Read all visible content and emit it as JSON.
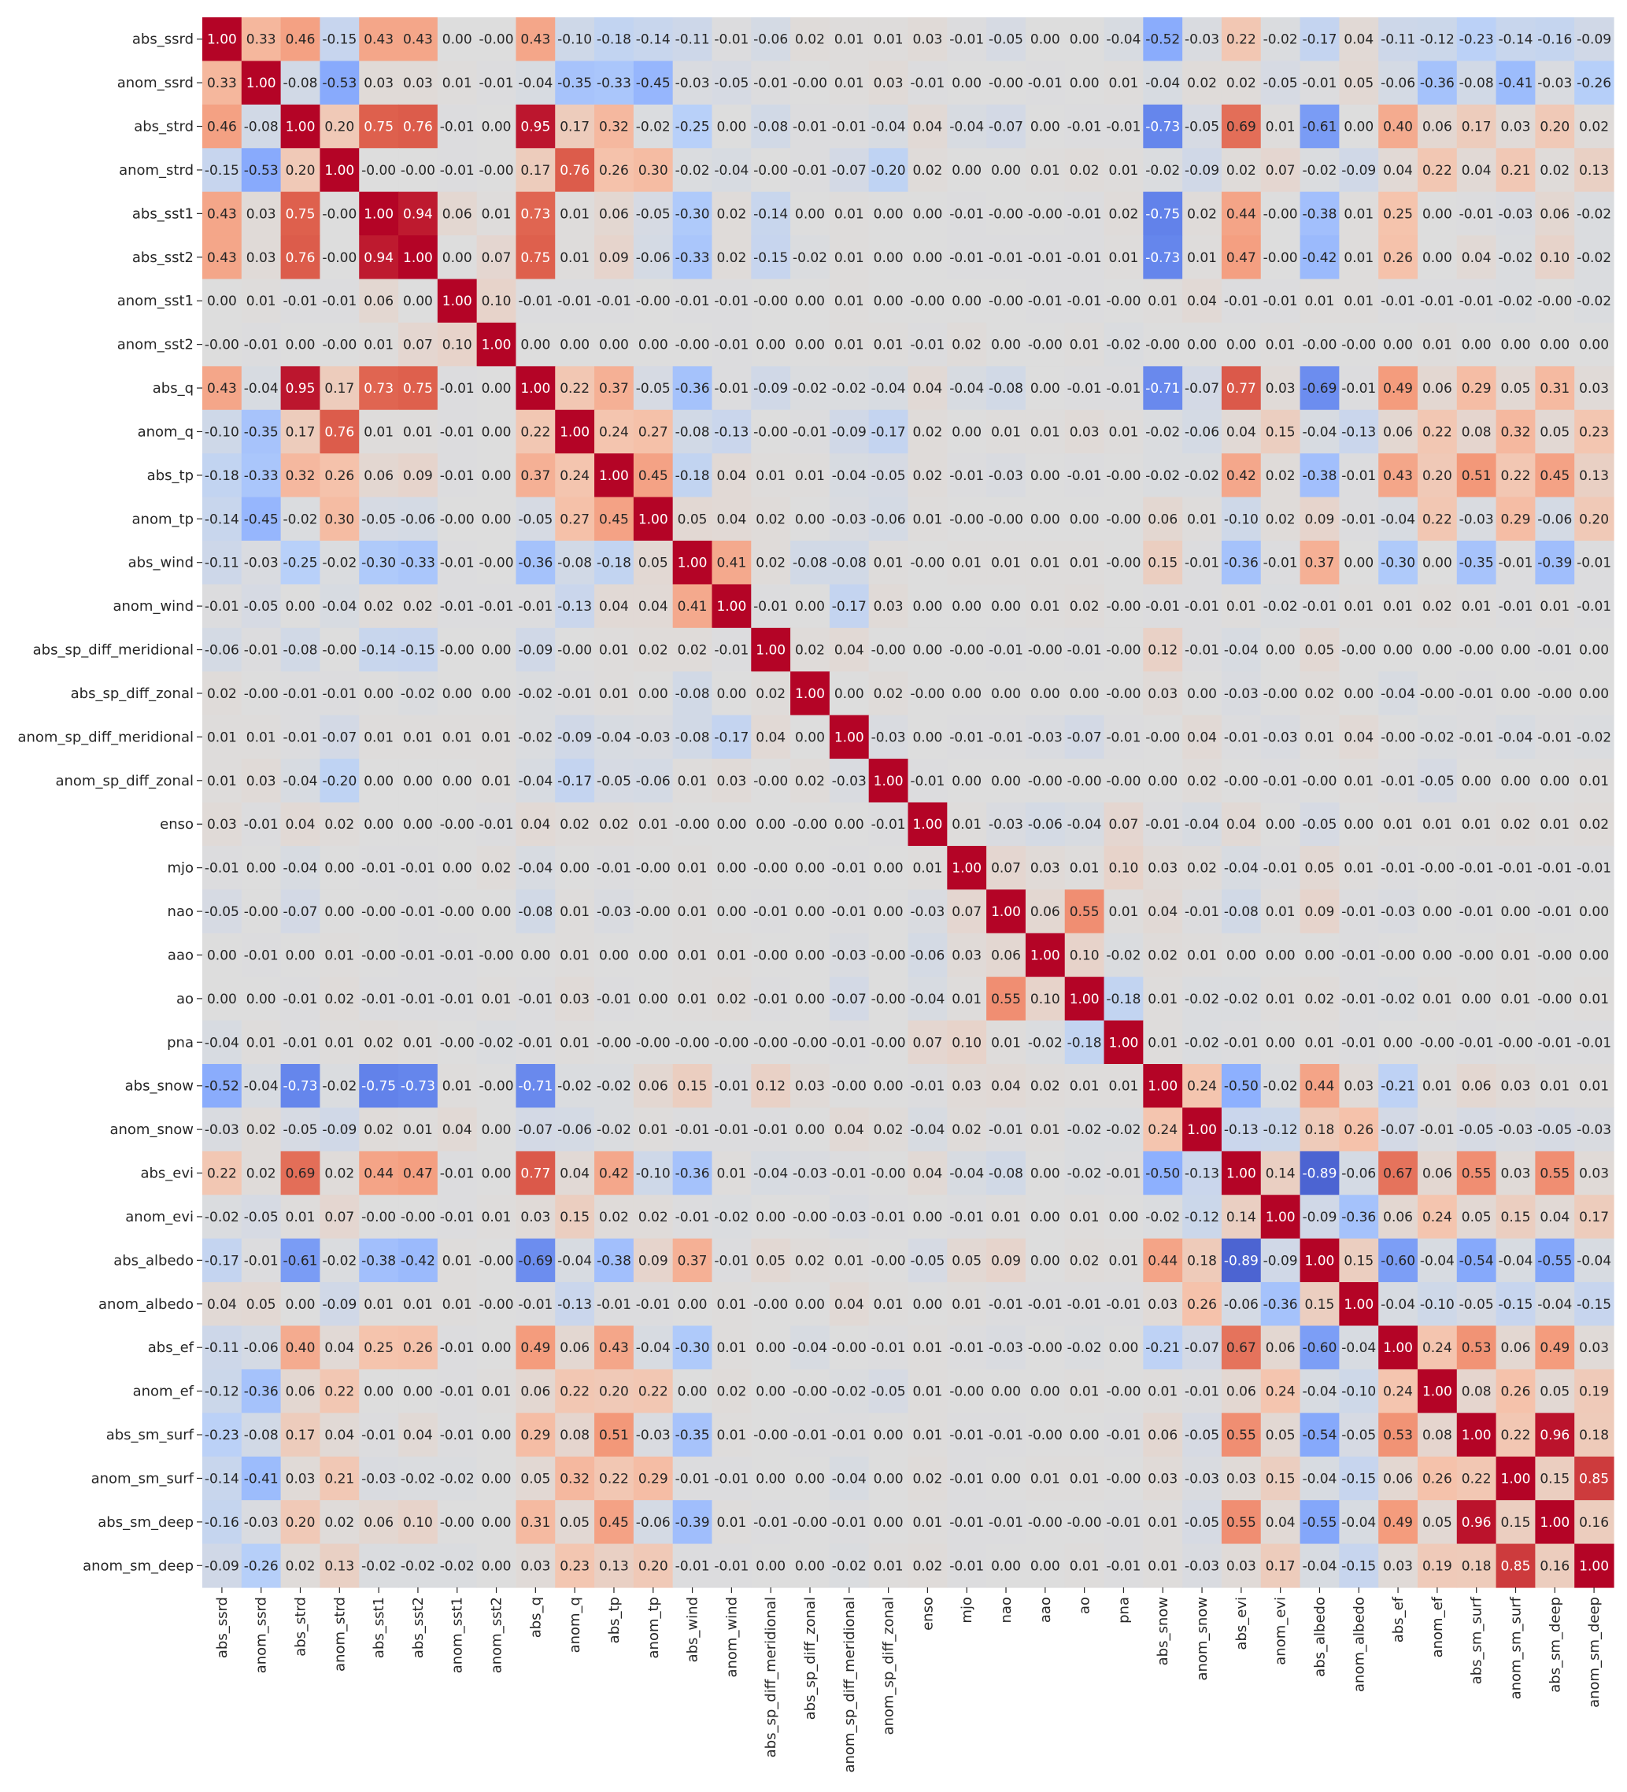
{
  "chart_data": {
    "type": "heatmap",
    "title": "",
    "xlabel": "",
    "ylabel": "",
    "colormap": "coolwarm",
    "vmin": -1,
    "vmax": 1,
    "colorbar": false,
    "annotation_format": "0.00",
    "labels": [
      "abs_ssrd",
      "anom_ssrd",
      "abs_strd",
      "anom_strd",
      "abs_sst1",
      "abs_sst2",
      "anom_sst1",
      "anom_sst2",
      "abs_q",
      "anom_q",
      "abs_tp",
      "anom_tp",
      "abs_wind",
      "anom_wind",
      "abs_sp_diff_meridional",
      "abs_sp_diff_zonal",
      "anom_sp_diff_meridional",
      "anom_sp_diff_zonal",
      "enso",
      "mjo",
      "nao",
      "aao",
      "ao",
      "pna",
      "abs_snow",
      "anom_snow",
      "abs_evi",
      "anom_evi",
      "abs_albedo",
      "anom_albedo",
      "abs_ef",
      "anom_ef",
      "abs_sm_surf",
      "anom_sm_surf",
      "abs_sm_deep",
      "anom_sm_deep"
    ],
    "matrix": [
      [
        1.0,
        0.33,
        0.46,
        -0.15,
        0.43,
        0.43,
        0.0,
        -0.0,
        0.43,
        -0.1,
        -0.18,
        -0.14,
        -0.11,
        -0.01,
        -0.06,
        0.02,
        0.01,
        0.01,
        0.03,
        -0.01,
        -0.05,
        0.0,
        0.0,
        -0.04,
        -0.52,
        -0.03,
        0.22,
        -0.02,
        -0.17,
        0.04,
        -0.11,
        -0.12,
        -0.23,
        -0.14,
        -0.16,
        -0.09
      ],
      [
        0.33,
        1.0,
        -0.08,
        -0.53,
        0.03,
        0.03,
        0.01,
        -0.01,
        -0.04,
        -0.35,
        -0.33,
        -0.45,
        -0.03,
        -0.05,
        -0.01,
        -0.0,
        0.01,
        0.03,
        -0.01,
        0.0,
        -0.0,
        -0.01,
        0.0,
        0.01,
        -0.04,
        0.02,
        0.02,
        -0.05,
        -0.01,
        0.05,
        -0.06,
        -0.36,
        -0.08,
        -0.41,
        -0.03,
        -0.26
      ],
      [
        0.46,
        -0.08,
        1.0,
        0.2,
        0.75,
        0.76,
        -0.01,
        0.0,
        0.95,
        0.17,
        0.32,
        -0.02,
        -0.25,
        0.0,
        -0.08,
        -0.01,
        -0.01,
        -0.04,
        0.04,
        -0.04,
        -0.07,
        0.0,
        -0.01,
        -0.01,
        -0.73,
        -0.05,
        0.69,
        0.01,
        -0.61,
        0.0,
        0.4,
        0.06,
        0.17,
        0.03,
        0.2,
        0.02
      ],
      [
        -0.15,
        -0.53,
        0.2,
        1.0,
        -0.0,
        -0.0,
        -0.01,
        -0.0,
        0.17,
        0.76,
        0.26,
        0.3,
        -0.02,
        -0.04,
        -0.0,
        -0.01,
        -0.07,
        -0.2,
        0.02,
        0.0,
        0.0,
        0.01,
        0.02,
        0.01,
        -0.02,
        -0.09,
        0.02,
        0.07,
        -0.02,
        -0.09,
        0.04,
        0.22,
        0.04,
        0.21,
        0.02,
        0.13
      ],
      [
        0.43,
        0.03,
        0.75,
        -0.0,
        1.0,
        0.94,
        0.06,
        0.01,
        0.73,
        0.01,
        0.06,
        -0.05,
        -0.3,
        0.02,
        -0.14,
        0.0,
        0.01,
        0.0,
        0.0,
        -0.01,
        -0.0,
        -0.0,
        -0.01,
        0.02,
        -0.75,
        0.02,
        0.44,
        -0.0,
        -0.38,
        0.01,
        0.25,
        0.0,
        -0.01,
        -0.03,
        0.06,
        -0.02
      ],
      [
        0.43,
        0.03,
        0.76,
        -0.0,
        0.94,
        1.0,
        0.0,
        0.07,
        0.75,
        0.01,
        0.09,
        -0.06,
        -0.33,
        0.02,
        -0.15,
        -0.02,
        0.01,
        0.0,
        0.0,
        -0.01,
        -0.01,
        -0.01,
        -0.01,
        0.01,
        -0.73,
        0.01,
        0.47,
        -0.0,
        -0.42,
        0.01,
        0.26,
        0.0,
        0.04,
        -0.02,
        0.1,
        -0.02
      ],
      [
        0.0,
        0.01,
        -0.01,
        -0.01,
        0.06,
        0.0,
        1.0,
        0.1,
        -0.01,
        -0.01,
        -0.01,
        -0.0,
        -0.01,
        -0.01,
        -0.0,
        0.0,
        0.01,
        0.0,
        -0.0,
        0.0,
        -0.0,
        -0.01,
        -0.01,
        -0.0,
        0.01,
        0.04,
        -0.01,
        -0.01,
        0.01,
        0.01,
        -0.01,
        -0.01,
        -0.01,
        -0.02,
        -0.0,
        -0.02
      ],
      [
        -0.0,
        -0.01,
        0.0,
        -0.0,
        0.01,
        0.07,
        0.1,
        1.0,
        0.0,
        0.0,
        0.0,
        0.0,
        -0.0,
        -0.01,
        0.0,
        0.0,
        0.01,
        0.01,
        -0.01,
        0.02,
        0.0,
        -0.0,
        0.01,
        -0.02,
        -0.0,
        0.0,
        0.0,
        0.01,
        -0.0,
        -0.0,
        0.0,
        0.01,
        0.0,
        0.0,
        0.0,
        0.0
      ],
      [
        0.43,
        -0.04,
        0.95,
        0.17,
        0.73,
        0.75,
        -0.01,
        0.0,
        1.0,
        0.22,
        0.37,
        -0.05,
        -0.36,
        -0.01,
        -0.09,
        -0.02,
        -0.02,
        -0.04,
        0.04,
        -0.04,
        -0.08,
        0.0,
        -0.01,
        -0.01,
        -0.71,
        -0.07,
        0.77,
        0.03,
        -0.69,
        -0.01,
        0.49,
        0.06,
        0.29,
        0.05,
        0.31,
        0.03
      ],
      [
        -0.1,
        -0.35,
        0.17,
        0.76,
        0.01,
        0.01,
        -0.01,
        0.0,
        0.22,
        1.0,
        0.24,
        0.27,
        -0.08,
        -0.13,
        -0.0,
        -0.01,
        -0.09,
        -0.17,
        0.02,
        0.0,
        0.01,
        0.01,
        0.03,
        0.01,
        -0.02,
        -0.06,
        0.04,
        0.15,
        -0.04,
        -0.13,
        0.06,
        0.22,
        0.08,
        0.32,
        0.05,
        0.23
      ],
      [
        -0.18,
        -0.33,
        0.32,
        0.26,
        0.06,
        0.09,
        -0.01,
        0.0,
        0.37,
        0.24,
        1.0,
        0.45,
        -0.18,
        0.04,
        0.01,
        0.01,
        -0.04,
        -0.05,
        0.02,
        -0.01,
        -0.03,
        0.0,
        -0.01,
        -0.0,
        -0.02,
        -0.02,
        0.42,
        0.02,
        -0.38,
        -0.01,
        0.43,
        0.2,
        0.51,
        0.22,
        0.45,
        0.13
      ],
      [
        -0.14,
        -0.45,
        -0.02,
        0.3,
        -0.05,
        -0.06,
        -0.0,
        0.0,
        -0.05,
        0.27,
        0.45,
        1.0,
        0.05,
        0.04,
        0.02,
        0.0,
        -0.03,
        -0.06,
        0.01,
        -0.0,
        -0.0,
        0.0,
        0.0,
        -0.0,
        0.06,
        0.01,
        -0.1,
        0.02,
        0.09,
        -0.01,
        -0.04,
        0.22,
        -0.03,
        0.29,
        -0.06,
        0.2
      ],
      [
        -0.11,
        -0.03,
        -0.25,
        -0.02,
        -0.3,
        -0.33,
        -0.01,
        -0.0,
        -0.36,
        -0.08,
        -0.18,
        0.05,
        1.0,
        0.41,
        0.02,
        -0.08,
        -0.08,
        0.01,
        -0.0,
        0.01,
        0.01,
        0.01,
        0.01,
        -0.0,
        0.15,
        -0.01,
        -0.36,
        -0.01,
        0.37,
        0.0,
        -0.3,
        0.0,
        -0.35,
        -0.01,
        -0.39,
        -0.01
      ],
      [
        -0.01,
        -0.05,
        0.0,
        -0.04,
        0.02,
        0.02,
        -0.01,
        -0.01,
        -0.01,
        -0.13,
        0.04,
        0.04,
        0.41,
        1.0,
        -0.01,
        0.0,
        -0.17,
        0.03,
        0.0,
        0.0,
        0.0,
        0.01,
        0.02,
        -0.0,
        -0.01,
        -0.01,
        0.01,
        -0.02,
        -0.01,
        0.01,
        0.01,
        0.02,
        0.01,
        -0.01,
        0.01,
        -0.01
      ],
      [
        -0.06,
        -0.01,
        -0.08,
        -0.0,
        -0.14,
        -0.15,
        -0.0,
        0.0,
        -0.09,
        -0.0,
        0.01,
        0.02,
        0.02,
        -0.01,
        1.0,
        0.02,
        0.04,
        -0.0,
        0.0,
        -0.0,
        -0.01,
        -0.0,
        -0.01,
        -0.0,
        0.12,
        -0.01,
        -0.04,
        0.0,
        0.05,
        -0.0,
        0.0,
        0.0,
        -0.0,
        0.0,
        -0.01,
        0.0
      ],
      [
        0.02,
        -0.0,
        -0.01,
        -0.01,
        0.0,
        -0.02,
        0.0,
        0.0,
        -0.02,
        -0.01,
        0.01,
        0.0,
        -0.08,
        0.0,
        0.02,
        1.0,
        0.0,
        0.02,
        -0.0,
        0.0,
        0.0,
        0.0,
        0.0,
        -0.0,
        0.03,
        0.0,
        -0.03,
        -0.0,
        0.02,
        0.0,
        -0.04,
        -0.0,
        -0.01,
        0.0,
        -0.0,
        0.0
      ],
      [
        0.01,
        0.01,
        -0.01,
        -0.07,
        0.01,
        0.01,
        0.01,
        0.01,
        -0.02,
        -0.09,
        -0.04,
        -0.03,
        -0.08,
        -0.17,
        0.04,
        0.0,
        1.0,
        -0.03,
        0.0,
        -0.01,
        -0.01,
        -0.03,
        -0.07,
        -0.01,
        -0.0,
        0.04,
        -0.01,
        -0.03,
        0.01,
        0.04,
        -0.0,
        -0.02,
        -0.01,
        -0.04,
        -0.01,
        -0.02
      ],
      [
        0.01,
        0.03,
        -0.04,
        -0.2,
        0.0,
        0.0,
        0.0,
        0.01,
        -0.04,
        -0.17,
        -0.05,
        -0.06,
        0.01,
        0.03,
        -0.0,
        0.02,
        -0.03,
        1.0,
        -0.01,
        0.0,
        0.0,
        -0.0,
        -0.0,
        -0.0,
        0.0,
        0.02,
        -0.0,
        -0.01,
        -0.0,
        0.01,
        -0.01,
        -0.05,
        0.0,
        0.0,
        0.0,
        0.01
      ],
      [
        0.03,
        -0.01,
        0.04,
        0.02,
        0.0,
        0.0,
        -0.0,
        -0.01,
        0.04,
        0.02,
        0.02,
        0.01,
        -0.0,
        0.0,
        0.0,
        -0.0,
        0.0,
        -0.01,
        1.0,
        0.01,
        -0.03,
        -0.06,
        -0.04,
        0.07,
        -0.01,
        -0.04,
        0.04,
        0.0,
        -0.05,
        0.0,
        0.01,
        0.01,
        0.01,
        0.02,
        0.01,
        0.02
      ],
      [
        -0.01,
        0.0,
        -0.04,
        0.0,
        -0.01,
        -0.01,
        0.0,
        0.02,
        -0.04,
        0.0,
        -0.01,
        -0.0,
        0.01,
        0.0,
        -0.0,
        0.0,
        -0.01,
        0.0,
        0.01,
        1.0,
        0.07,
        0.03,
        0.01,
        0.1,
        0.03,
        0.02,
        -0.04,
        -0.01,
        0.05,
        0.01,
        -0.01,
        -0.0,
        -0.01,
        -0.01,
        -0.01,
        -0.01
      ],
      [
        -0.05,
        -0.0,
        -0.07,
        0.0,
        -0.0,
        -0.01,
        -0.0,
        0.0,
        -0.08,
        0.01,
        -0.03,
        -0.0,
        0.01,
        0.0,
        -0.01,
        0.0,
        -0.01,
        0.0,
        -0.03,
        0.07,
        1.0,
        0.06,
        0.55,
        0.01,
        0.04,
        -0.01,
        -0.08,
        0.01,
        0.09,
        -0.01,
        -0.03,
        0.0,
        -0.01,
        0.0,
        -0.01,
        0.0
      ],
      [
        0.0,
        -0.01,
        0.0,
        0.01,
        -0.0,
        -0.01,
        -0.01,
        -0.0,
        0.0,
        0.01,
        0.0,
        0.0,
        0.01,
        0.01,
        -0.0,
        0.0,
        -0.03,
        -0.0,
        -0.06,
        0.03,
        0.06,
        1.0,
        0.1,
        -0.02,
        0.02,
        0.01,
        0.0,
        0.0,
        0.0,
        -0.01,
        -0.0,
        0.0,
        -0.0,
        0.01,
        -0.0,
        0.0
      ],
      [
        0.0,
        0.0,
        -0.01,
        0.02,
        -0.01,
        -0.01,
        -0.01,
        0.01,
        -0.01,
        0.03,
        -0.01,
        0.0,
        0.01,
        0.02,
        -0.01,
        0.0,
        -0.07,
        -0.0,
        -0.04,
        0.01,
        0.55,
        0.1,
        1.0,
        -0.18,
        0.01,
        -0.02,
        -0.02,
        0.01,
        0.02,
        -0.01,
        -0.02,
        0.01,
        0.0,
        0.01,
        -0.0,
        0.01
      ],
      [
        -0.04,
        0.01,
        -0.01,
        0.01,
        0.02,
        0.01,
        -0.0,
        -0.02,
        -0.01,
        0.01,
        -0.0,
        -0.0,
        -0.0,
        -0.0,
        -0.0,
        -0.0,
        -0.01,
        -0.0,
        0.07,
        0.1,
        0.01,
        -0.02,
        -0.18,
        1.0,
        0.01,
        -0.02,
        -0.01,
        0.0,
        0.01,
        -0.01,
        0.0,
        -0.0,
        -0.01,
        -0.0,
        -0.01,
        -0.01
      ],
      [
        -0.52,
        -0.04,
        -0.73,
        -0.02,
        -0.75,
        -0.73,
        0.01,
        -0.0,
        -0.71,
        -0.02,
        -0.02,
        0.06,
        0.15,
        -0.01,
        0.12,
        0.03,
        -0.0,
        0.0,
        -0.01,
        0.03,
        0.04,
        0.02,
        0.01,
        0.01,
        1.0,
        0.24,
        -0.5,
        -0.02,
        0.44,
        0.03,
        -0.21,
        0.01,
        0.06,
        0.03,
        0.01,
        0.01
      ],
      [
        -0.03,
        0.02,
        -0.05,
        -0.09,
        0.02,
        0.01,
        0.04,
        0.0,
        -0.07,
        -0.06,
        -0.02,
        0.01,
        -0.01,
        -0.01,
        -0.01,
        0.0,
        0.04,
        0.02,
        -0.04,
        0.02,
        -0.01,
        0.01,
        -0.02,
        -0.02,
        0.24,
        1.0,
        -0.13,
        -0.12,
        0.18,
        0.26,
        -0.07,
        -0.01,
        -0.05,
        -0.03,
        -0.05,
        -0.03
      ],
      [
        0.22,
        0.02,
        0.69,
        0.02,
        0.44,
        0.47,
        -0.01,
        0.0,
        0.77,
        0.04,
        0.42,
        -0.1,
        -0.36,
        0.01,
        -0.04,
        -0.03,
        -0.01,
        -0.0,
        0.04,
        -0.04,
        -0.08,
        0.0,
        -0.02,
        -0.01,
        -0.5,
        -0.13,
        1.0,
        0.14,
        -0.89,
        -0.06,
        0.67,
        0.06,
        0.55,
        0.03,
        0.55,
        0.03
      ],
      [
        -0.02,
        -0.05,
        0.01,
        0.07,
        -0.0,
        -0.0,
        -0.01,
        0.01,
        0.03,
        0.15,
        0.02,
        0.02,
        -0.01,
        -0.02,
        0.0,
        -0.0,
        -0.03,
        -0.01,
        0.0,
        -0.01,
        0.01,
        0.0,
        0.01,
        0.0,
        -0.02,
        -0.12,
        0.14,
        1.0,
        -0.09,
        -0.36,
        0.06,
        0.24,
        0.05,
        0.15,
        0.04,
        0.17
      ],
      [
        -0.17,
        -0.01,
        -0.61,
        -0.02,
        -0.38,
        -0.42,
        0.01,
        -0.0,
        -0.69,
        -0.04,
        -0.38,
        0.09,
        0.37,
        -0.01,
        0.05,
        0.02,
        0.01,
        -0.0,
        -0.05,
        0.05,
        0.09,
        0.0,
        0.02,
        0.01,
        0.44,
        0.18,
        -0.89,
        -0.09,
        1.0,
        0.15,
        -0.6,
        -0.04,
        -0.54,
        -0.04,
        -0.55,
        -0.04
      ],
      [
        0.04,
        0.05,
        0.0,
        -0.09,
        0.01,
        0.01,
        0.01,
        -0.0,
        -0.01,
        -0.13,
        -0.01,
        -0.01,
        0.0,
        0.01,
        -0.0,
        0.0,
        0.04,
        0.01,
        0.0,
        0.01,
        -0.01,
        -0.01,
        -0.01,
        -0.01,
        0.03,
        0.26,
        -0.06,
        -0.36,
        0.15,
        1.0,
        -0.04,
        -0.1,
        -0.05,
        -0.15,
        -0.04,
        -0.15
      ],
      [
        -0.11,
        -0.06,
        0.4,
        0.04,
        0.25,
        0.26,
        -0.01,
        0.0,
        0.49,
        0.06,
        0.43,
        -0.04,
        -0.3,
        0.01,
        0.0,
        -0.04,
        -0.0,
        -0.01,
        0.01,
        -0.01,
        -0.03,
        -0.0,
        -0.02,
        0.0,
        -0.21,
        -0.07,
        0.67,
        0.06,
        -0.6,
        -0.04,
        1.0,
        0.24,
        0.53,
        0.06,
        0.49,
        0.03
      ],
      [
        -0.12,
        -0.36,
        0.06,
        0.22,
        0.0,
        0.0,
        -0.01,
        0.01,
        0.06,
        0.22,
        0.2,
        0.22,
        0.0,
        0.02,
        0.0,
        -0.0,
        -0.02,
        -0.05,
        0.01,
        -0.0,
        0.0,
        0.0,
        0.01,
        -0.0,
        0.01,
        -0.01,
        0.06,
        0.24,
        -0.04,
        -0.1,
        0.24,
        1.0,
        0.08,
        0.26,
        0.05,
        0.19
      ],
      [
        -0.23,
        -0.08,
        0.17,
        0.04,
        -0.01,
        0.04,
        -0.01,
        0.0,
        0.29,
        0.08,
        0.51,
        -0.03,
        -0.35,
        0.01,
        -0.0,
        -0.01,
        -0.01,
        0.0,
        0.01,
        -0.01,
        -0.01,
        -0.0,
        0.0,
        -0.01,
        0.06,
        -0.05,
        0.55,
        0.05,
        -0.54,
        -0.05,
        0.53,
        0.08,
        1.0,
        0.22,
        0.96,
        0.18
      ],
      [
        -0.14,
        -0.41,
        0.03,
        0.21,
        -0.03,
        -0.02,
        -0.02,
        0.0,
        0.05,
        0.32,
        0.22,
        0.29,
        -0.01,
        -0.01,
        0.0,
        0.0,
        -0.04,
        0.0,
        0.02,
        -0.01,
        0.0,
        0.01,
        0.01,
        -0.0,
        0.03,
        -0.03,
        0.03,
        0.15,
        -0.04,
        -0.15,
        0.06,
        0.26,
        0.22,
        1.0,
        0.15,
        0.85
      ],
      [
        -0.16,
        -0.03,
        0.2,
        0.02,
        0.06,
        0.1,
        -0.0,
        0.0,
        0.31,
        0.05,
        0.45,
        -0.06,
        -0.39,
        0.01,
        -0.01,
        -0.0,
        -0.01,
        0.0,
        0.01,
        -0.01,
        -0.01,
        -0.0,
        -0.0,
        -0.01,
        0.01,
        -0.05,
        0.55,
        0.04,
        -0.55,
        -0.04,
        0.49,
        0.05,
        0.96,
        0.15,
        1.0,
        0.16
      ],
      [
        -0.09,
        -0.26,
        0.02,
        0.13,
        -0.02,
        -0.02,
        -0.02,
        0.0,
        0.03,
        0.23,
        0.13,
        0.2,
        -0.01,
        -0.01,
        0.0,
        0.0,
        -0.02,
        0.01,
        0.02,
        -0.01,
        0.0,
        0.0,
        0.01,
        -0.01,
        0.01,
        -0.03,
        0.03,
        0.17,
        -0.04,
        -0.15,
        0.03,
        0.19,
        0.18,
        0.85,
        0.16,
        1.0
      ]
    ]
  }
}
